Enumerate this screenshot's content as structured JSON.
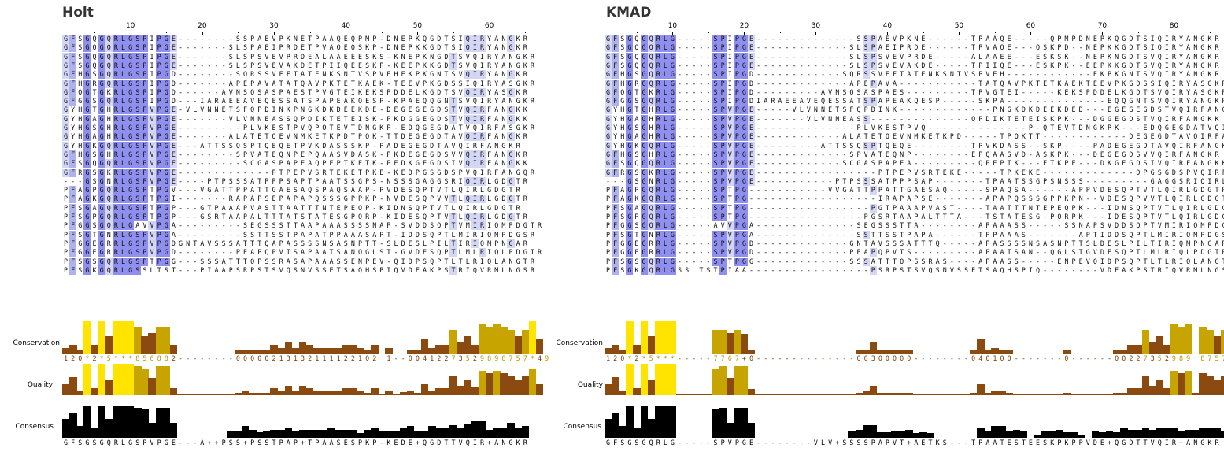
{
  "panels": [
    {
      "id": "holt",
      "title": "Holt",
      "ruler_numbers": [
        "10",
        "20",
        "30",
        "40",
        "50",
        "60"
      ],
      "sequences": [
        "GFSGQGQRLGSPIPGE--------SSPAEVPKNETPAAQEQPMP-DNEPKQGDTSIQIRYANGKR",
        "GFSGQGQRLGSPIPGE-------SLSPAEIPRDETPVAQEQSKP-DNEPKKGDTSIQIRYANGKR",
        "GFSGQGQRLGSPIPGE-------SLSPSVEVPRDEALAAEEESKS-KNEPKNGDTSVQIRYANGKR",
        "GFSGQGQRLGSPIPGE-------SLSPSVEVAKDETPIIQEESKP-KEEPKKGDTSVQIRYANGKR",
        "GFHGSGQRLGSPIPGD--------SQRSSVEFTATENKSNTVSPVEHEKPKGNTSVQIRYANGKR",
        "GFHGRGQRLGSPIPGD-------APEPAVATATQAVPKTETKAEK-TEEVPKGDSSIQIRYASGKR",
        "GFQGTGKRLGSPIPGD------AVNSQSASPAESTPVGTEIKEKSPDDELKGDTSVQIRYASGKR",
        "GFGGSGQRLGSPIPGD---IARAEEAVEQESSATSPAPEAKQESP-KPAEQQGNTSVQIRYANGKR",
        "GYHGTGHRLGSPVPGE-VLVNNETSFQPDINKPNGKDKDEEKDE-DEGEGEGDSTVQIRFANGKK",
        "GYHGAGHRLGSPVPGE-------VLVNNEASSQPDIKTETEISK-PKDGGEGDSTVQIRFANGKK",
        "GYHGSGHRLGSPVPGE---------PLVKESTPVQPOTEVTDNGKP-EDQGEGDATVQIRFASGKR",
        "GYHGAGHRLGSPVPGE-------ALATETQEVNMKETKPDTPQK-TTDEGEGDTAVQIRFANGKR",
        "GYHGKGQRLGSPVPGE---ATTSSQSPTQEQETPVKDASSSKP-PADEGEGDTAVQIRFANGKR",
        "GFHGSGHRLGSPVPGE--------SPVATEQNPEPQAASVDASK-PKDEGEGDSVVQIRFANGKR",
        "GFSGQGQRLGSPVPGE---------SCGASPAPEAQPEPTKETK-PEDKGEGDSIVQIRFANGKK",
        "GFRGSGKRLGSPVPGE-------------PTPEPVSRTEKETPKE-KEDPGSGDSPVQIRFANGQR",
        "---GSGNRLGSPVPGE----PTPSSSATPPPSAPTPAATSSGPS-NSSSGAGGSRIQIRLGDGTR",
        "PFAGPGQRLGSPTPGV---VGATTPPATTGAESAQSPAQSAAP-PVDESQPTVTLQIRLGDGTR",
        "PFAGKGQRLGSPTPGI-------RAPAPSEPAPAPQSSSGPPKP-NVDESQPVVTLQIRLGDGTR",
        "PFSGAGQRLGSPTPGP---GTPAAAPVASTTAATTTNTEPEQP-KIDNSQPTVTLQIRLGDGTR",
        "PFSGPGQRLGSPTPGP---GSRTAAPALTTTATSTATESGPORP-KIDESQPTVTLQIRLGDGTR",
        "PFGGSGQRLGAVVPGA---------SEGSSSTTAAPAAASSSSNAP-SVDDSQPTVMIRIQMPDGTR",
        "PFSGTGNRLGSPVPGA---------SSTTSSTPAPATPPAAASAPT-IDDSQPTLMIRIQMPDGSR",
        "PFGGEGRRLGSPVPGDGNTAVSSSATTTQAPASSSSNSASNPTT-SLDESLPILTIRIQMPNGAR",
        "PFGGEGRRLGSPVPGD--------PEAPQPVTSAPAATSANQGLST-GVDESQPTLMLRIQLPDGTR",
        "PFSGSGQRLGSPTPGG---SSSATTTOPSSRASAPAAASSENPEV-QIDPSQPTLTLRIQLANGTR",
        "PFSGKGQRLGSSLTST---PIAAPSRPSTSVQSNVSSETSAQHSPIQVDEAKPSTRIQVRMLNGSR"
      ],
      "conservation_text": "120*2*5***856882--------00000213132111122102 1--00412273529898757*49",
      "consensus_text": "GFSGSGQRLGSPVPGE---A++PSS+PSSTPAP+TPAASESPKP-KEDE+QGDTTVQIR+ANGKR"
    },
    {
      "id": "kmad",
      "title": "KMAD",
      "ruler_numbers": [
        "10",
        "20",
        "30",
        "40",
        "50",
        "60",
        "70",
        "80"
      ],
      "sequences": [
        "GFSGQGQRLG-----SPIPGE--------------SSPAEVPKNE------TPAAQE-----QPMPDNEPKQGDTSIQIRYANGKR",
        "GFSGQGQRLG-----SPIPGE-------------SLSPAEIPRDE------TPVAQE---QSKPD--NEPKKGDTSIQIRYANGKR",
        "GFSGQGQRLG-----SPIPGE-------------SLSPSVEVPRDE-----ALAAEE---ESKSK--NEPKNGDTSVQIRYANGKR",
        "GFSGQGQRLG-----SPIPGE-------------SLSPSVEVAKDE-----TPIIQE---ESKPK--EEPKKGDTSVQIRYANGKR",
        "GFHGSGQRLG-----SPIPGD------------SQRSSVEFTATENKSNTVSPVEH------------EKPKGNTSVQIRYANGKR",
        "GFHGRGQRLG-----SPIPGD-------------APEPAVA-----------TATQAVPKTETKAEKTEEVPKGDSSIQIRYASGKR",
        "GFQGTGKRLG-----SPIPGD---------AVNSQSASPAES---------TPVGTEI-----KEKSPDDELKGDTSVQIRYASGKR",
        "GFGGSGQRLG-----SPIPGDIARAEEAVEQESSATSPAPEAKQESP-----SKPA--------------EQQGNTSVQIRYANGKR",
        "GYHGTGHRLG-----SPVPGE-----VLVNNETSFQPDINK-------------PNGKDKDEEKDED---EGEGEGDSTVQIRFANGKK",
        "GYHGAGHRLG-----SPVPGE-------VLVNNEASS--------------QPDIKTETEISKPK---DGGEGDSTVQIRFANGKK",
        "GYHGSGHRLG-----SPVPGE--------------PLVKESTPVQ--------------P-QTEVTDNGKPK---EDQGEGDATVQIRFASGKR",
        "GYHGAGHRLG-----SPVPGE------------ALATETQEVNMKETKPD-----TPQKTT------------DEGEGDTAVQIRFANGKR",
        "GYHGKGQRLG-----SPVPGE---------ATTSSQSPTQEQE--------TPVKDASS--SKP----PADEGEGDTAVQIRFANGKR",
        "GFHGSGHRLG-----SPVPGE-------------SPVATEQNP--------EPQAASVD-ASKPK---DEGEGDSVVQIRFANGKR",
        "GFSGQGQRLG-----SPVPGE------------SCGASPAPEA---------QPEPTK---ETKPE---DKGEGDSIVQIRFANGKK",
        "GFRGSGKRLG-----SPVPGE-----------------PTPEPVSRTEKE-----TPKEKE-------------DPGSGDSPVQIRFANGQR",
        "---GSGNRLG-----SPVPGE-----------PTPSSSATPPPSAP-------TPAATSSGPSNSSS---------GAGGSRIQIRLGDGTR",
        "PFAGPGQRLG-----SPTPG-----------VVGATTPPATTGAESAQ-----SPAQSA------APPVDESQPTVTLQIRLGDGTR",
        "PFAGKGQRLG-----SPTPG------------------IRAPAPSE-------APAPQSSSGPPKPN--VDESQPVVTLQIRLGDGTR",
        "PFSGAGQRLG-----SPTPG-----------------PGTPAAAPVAST----TAATTTNTEPEQPK---IDNSQPTVTLQIRLGDGTR",
        "PFSGPGQRLG-----SPTPG----------------PGSRTAAPALTTTA---TSTATESG-PORPK---IDESQPTVTLQIRLGDGTR",
        "PFGGSGQRLG-----AVVPGA--------------SEGSSSTTA--------APAAASS-----SSNAPSVDDSQPTVMIRIQMPDGTR",
        "PFSGTGNRLG-----SPVPGA--------------SSTTSSTPAPA------TPPAAAS-------APTIDDSQPTLMIRIQMPDGSR",
        "PFGGEGRRLG-----SPVPGD-------------GNTAVSSSATTTQ-----APASSSSNSASNPTTSLDESLPILTIRIQMPNGAR",
        "PFGGEGRRLG-----SPVPGD-------------PEAPQPVTS---------APAATSAN--QGLSTGVDESQPTLMLRIQLPDGTR",
        "PFSGSGQRLG-----SPTPGG-------------SSSATTTOPSSRAS----APAASS-----ENPEVQIDPSQPTLTLRIQLANGTR",
        "PFSGKGQRLGSSLTSTPIAA-----------------PSRPSTSVQSNVSSETSAQHSPIQ--------VDEAKPSTRIQVRMLNGSR"
      ],
      "conservation_text": "120*2*5***-----7767+0--------------00300000--------040100-------0------00227352989 8757*49",
      "consensus_text": "GFSGSGQRLG-----SPVPGE--------VLV+SSSSPAPVT+AETKS---TPAATESTEESKPKPPVDE+QGDTTVQIR+ANGKR"
    }
  ],
  "track_labels": {
    "conservation": "Conservation",
    "quality": "Quality",
    "consensus": "Consensus"
  },
  "colors": {
    "dark_blue": "#8f8ff0",
    "mid_blue": "#aeb3ee",
    "light_blue": "#d4d6f6",
    "bright_yellow": "#ffe400",
    "gold": "#c8a400",
    "brown": "#8b4a10",
    "consensus_black": "#000000",
    "cons_text_yellow": "#b89500",
    "cons_text_brown": "#7a3a00"
  }
}
